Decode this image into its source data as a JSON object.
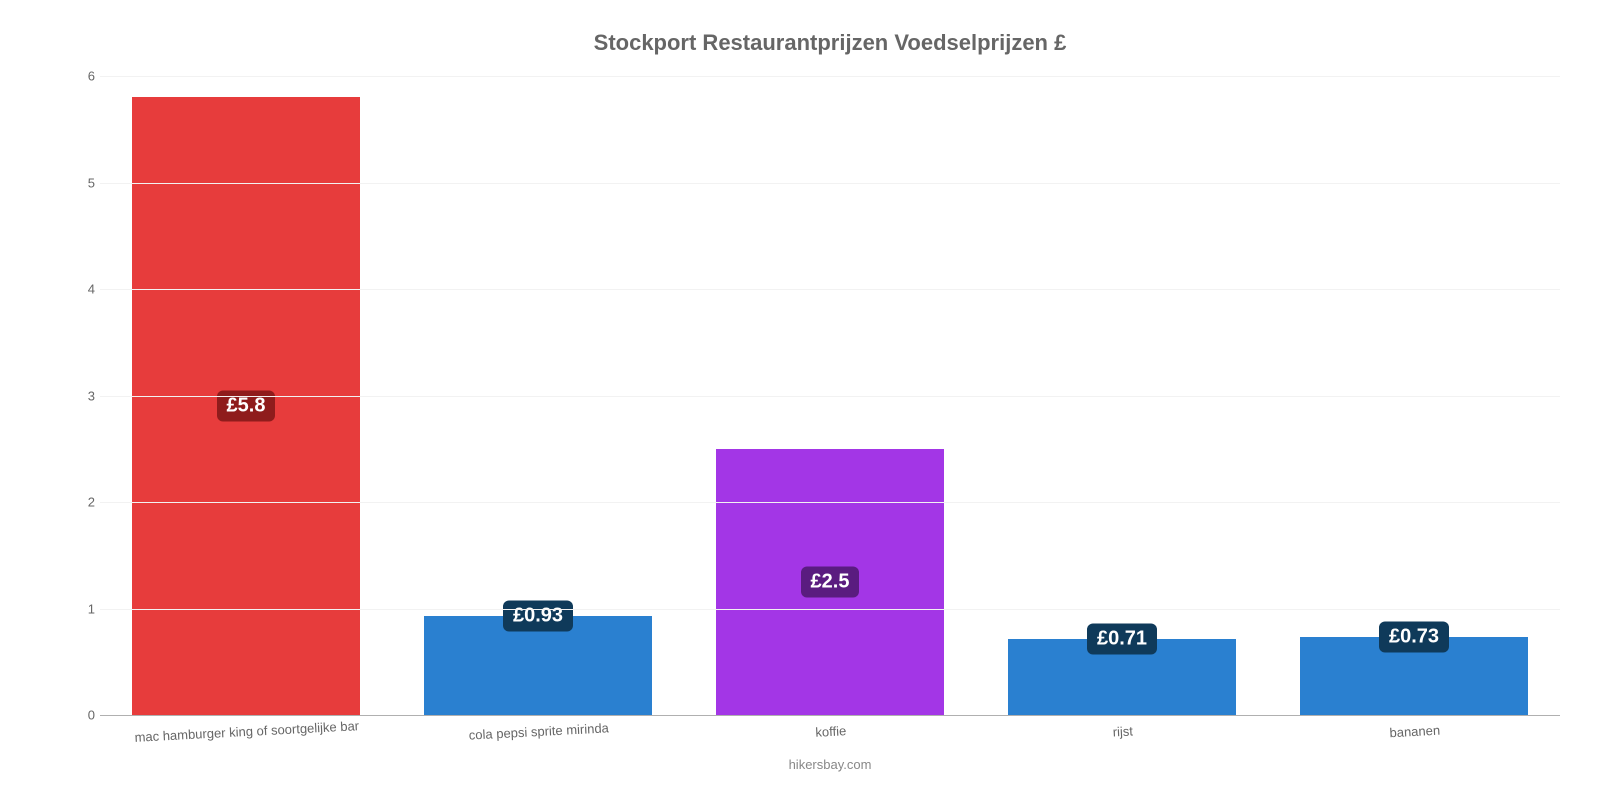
{
  "chart": {
    "type": "bar",
    "title": "Stockport Restaurantprijzen Voedselprijzen £",
    "title_fontsize": 22,
    "title_color": "#666666",
    "background_color": "#ffffff",
    "grid_color": "#f2f2f2",
    "axis_color": "#b0b0b0",
    "tick_color": "#666666",
    "tick_fontsize": 13,
    "ylim": [
      0,
      6
    ],
    "ytick_step": 1,
    "yticks": [
      0,
      1,
      2,
      3,
      4,
      5,
      6
    ],
    "categories": [
      "mac hamburger king of soortgelijke bar",
      "cola pepsi sprite mirinda",
      "koffie",
      "rijst",
      "bananen"
    ],
    "values": [
      5.8,
      0.93,
      2.5,
      0.71,
      0.73
    ],
    "value_labels": [
      "£5.8",
      "£0.93",
      "£2.5",
      "£0.71",
      "£0.73"
    ],
    "bar_colors": [
      "#e73c3c",
      "#2a80d0",
      "#a336e6",
      "#2a80d0",
      "#2a80d0"
    ],
    "label_bg_colors": [
      "#8f1c1c",
      "#0f3a5a",
      "#5a1c80",
      "#0f3a5a",
      "#0f3a5a"
    ],
    "label_text_color": "#ffffff",
    "label_fontsize": 20,
    "bar_width": 0.78,
    "xlabel_fontsize": 13,
    "xlabel_color": "#666666",
    "xlabel_rotation_deg": -3,
    "credit": "hikersbay.com",
    "credit_color": "#888888",
    "credit_fontsize": 13,
    "label_position_threshold": 1.2
  }
}
